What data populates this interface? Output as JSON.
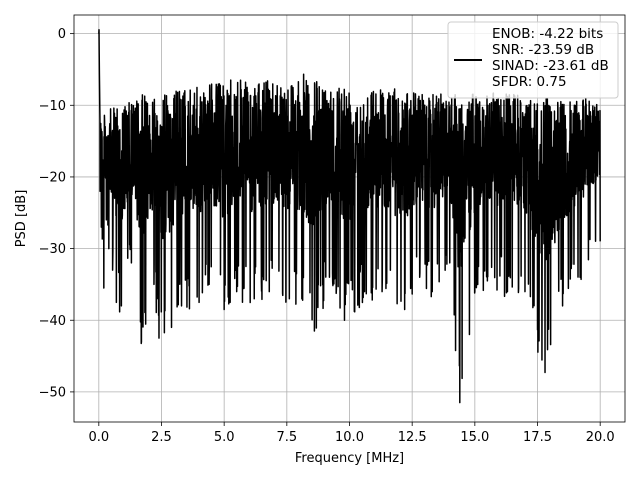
{
  "chart_data": {
    "type": "line",
    "xlabel": "Frequency [MHz]",
    "ylabel": "PSD [dB]",
    "xlim": [
      -0.99,
      20.99
    ],
    "ylim": [
      -54.2,
      2.6
    ],
    "x_ticks": [
      0.0,
      2.5,
      5.0,
      7.5,
      10.0,
      12.5,
      15.0,
      17.5,
      20.0
    ],
    "x_tick_labels": [
      "0.0",
      "2.5",
      "5.0",
      "7.5",
      "10.0",
      "12.5",
      "15.0",
      "17.5",
      "20.0"
    ],
    "y_ticks": [
      0,
      -10,
      -20,
      -30,
      -40,
      -50
    ],
    "y_tick_labels": [
      "0",
      "−10",
      "−20",
      "−30",
      "−40",
      "−50"
    ],
    "grid": true,
    "legend_position": "upper right",
    "legend_lines": [
      "ENOB: -4.22 bits",
      "SNR: -23.59 dB",
      "SINAD: -23.61 dB",
      "SFDR: 0.75"
    ],
    "series": [
      {
        "color": "#000000",
        "description": "dense noisy spectrum",
        "x": [
          0.0,
          0.05,
          0.1,
          0.2,
          0.3,
          0.4,
          0.55,
          0.7,
          0.9,
          1.3,
          1.7,
          2.2,
          2.4,
          2.9,
          3.3,
          4.0,
          4.4,
          5.0,
          5.5,
          6.2,
          6.8,
          7.6,
          8.1,
          8.6,
          9.2,
          9.8,
          10.6,
          11.3,
          12.2,
          12.8,
          13.3,
          14.0,
          14.4,
          15.0,
          15.5,
          16.3,
          17.0,
          17.8,
          18.5,
          19.2,
          20.0
        ],
        "y": [
          0.0,
          -22.0,
          -27.0,
          -35.5,
          -26.0,
          -30.0,
          -33.0,
          -37.5,
          -38.0,
          -32.0,
          -43.0,
          -35.0,
          -42.5,
          -41.0,
          -38.0,
          -37.5,
          -35.0,
          -38.5,
          -36.0,
          -37.0,
          -36.0,
          -37.0,
          -37.0,
          -41.5,
          -34.0,
          -40.0,
          -36.0,
          -36.0,
          -38.5,
          -34.0,
          -36.0,
          -32.0,
          -51.5,
          -36.0,
          -34.5,
          -36.0,
          -36.0,
          -47.3,
          -38.0,
          -34.0,
          -29.0
        ],
        "envelope_upper": [
          0.0,
          -8.0,
          -12.0,
          -11.0,
          -12.0,
          -10.0,
          -11.0,
          -9.0,
          -10.0,
          -9.5,
          -8.5,
          -8.0,
          -8.5,
          -8.0,
          -7.5,
          -7.5,
          -6.5,
          -7.0,
          -6.0,
          -7.5,
          -6.0,
          -6.5,
          -5.5,
          -6.5,
          -7.0,
          -6.5,
          -8.0,
          -7.0,
          -8.0,
          -8.0,
          -8.5,
          -7.5,
          -8.0,
          -8.5,
          -8.0,
          -8.0,
          -9.0,
          -9.0,
          -9.5,
          -9.0,
          -9.0
        ]
      }
    ]
  }
}
